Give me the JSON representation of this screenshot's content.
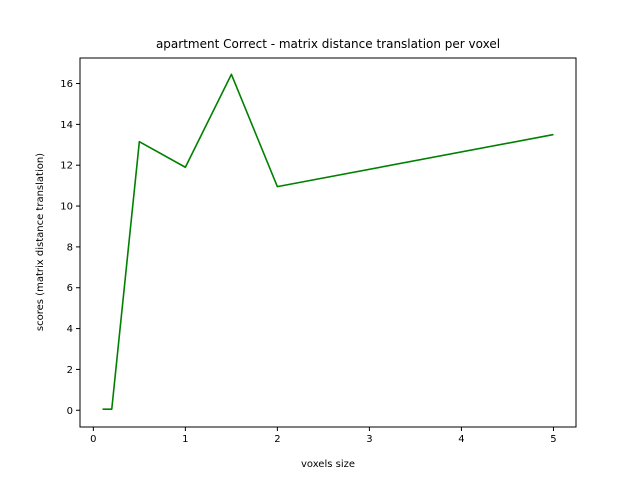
{
  "chart_data": {
    "type": "line",
    "title": "apartment Correct - matrix distance translation per voxel",
    "xlabel": "voxels size",
    "ylabel": "scores (matrix distance translation)",
    "xlim": [
      -0.145,
      5.245
    ],
    "ylim": [
      -0.82,
      17.25
    ],
    "xticks": [
      0,
      1,
      2,
      3,
      4,
      5
    ],
    "yticks": [
      0,
      2,
      4,
      6,
      8,
      10,
      12,
      14,
      16
    ],
    "grid": false,
    "series": [
      {
        "color": "#008000",
        "x": [
          0.1,
          0.2,
          0.5,
          1,
          1.5,
          2,
          5
        ],
        "y": [
          0.05,
          0.05,
          13.15,
          11.9,
          16.45,
          10.95,
          13.5
        ]
      }
    ]
  }
}
